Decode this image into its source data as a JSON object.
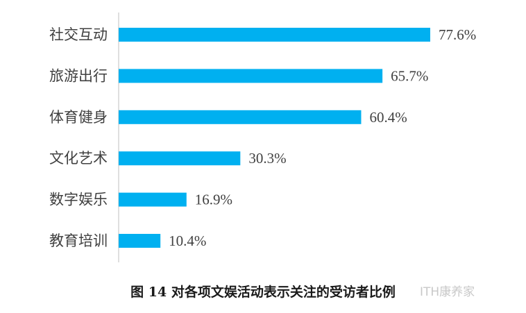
{
  "chart_data": {
    "type": "bar",
    "orientation": "horizontal",
    "categories": [
      "社交互动",
      "旅游出行",
      "体育健身",
      "文化艺术",
      "数字娱乐",
      "教育培训"
    ],
    "values": [
      77.6,
      65.7,
      60.4,
      30.3,
      16.9,
      10.4
    ],
    "value_labels": [
      "77.6%",
      "65.7%",
      "60.4%",
      "30.3%",
      "16.9%",
      "10.4%"
    ],
    "title": "图 14  对各项文娱活动表示关注的受访者比例",
    "xlabel": "",
    "ylabel": "",
    "xlim": [
      0,
      100
    ],
    "grid": false,
    "bar_color": "#00b0f0"
  },
  "watermark": "ITH康养家"
}
